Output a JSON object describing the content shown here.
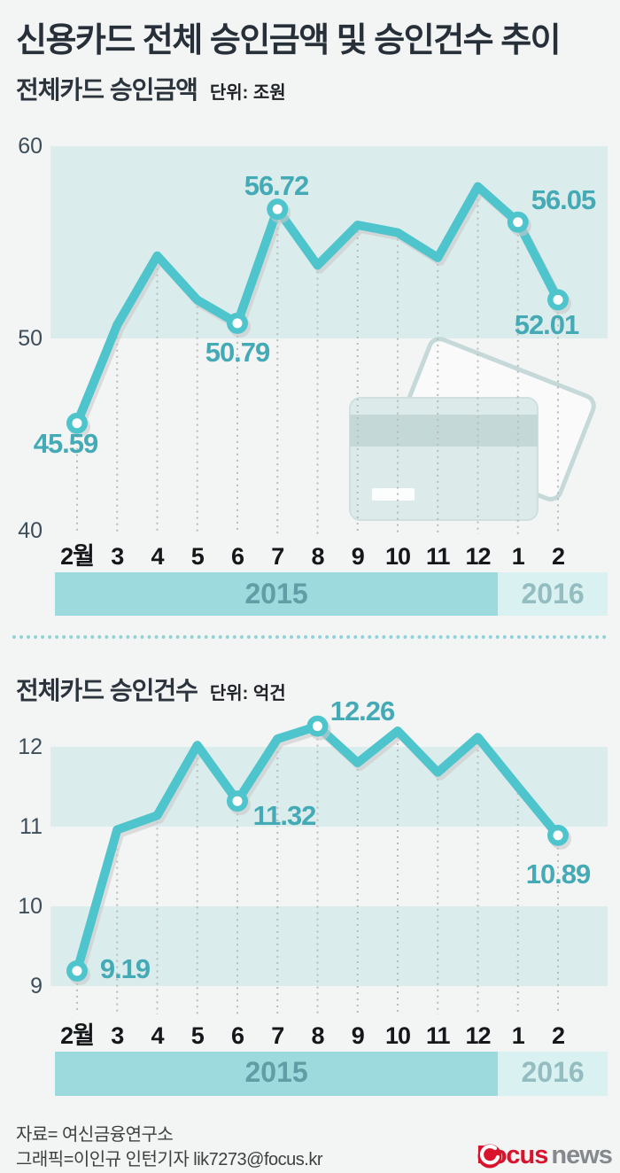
{
  "header": {
    "title": "신용카드 전체 승인금액 및 승인건수 추이"
  },
  "sections": [
    {
      "title": "전체카드 승인금액",
      "unit": "단위: 조원"
    },
    {
      "title": "전체카드 승인건수",
      "unit": "단위: 억건"
    }
  ],
  "chart_data": [
    {
      "type": "line",
      "title": "전체카드 승인금액",
      "unit": "조원",
      "categories": [
        "2월",
        "3",
        "4",
        "5",
        "6",
        "7",
        "8",
        "9",
        "10",
        "11",
        "12",
        "1",
        "2"
      ],
      "x_groups": [
        {
          "label": "2015",
          "count": 11
        },
        {
          "label": "2016",
          "count": 2
        }
      ],
      "values": [
        45.59,
        50.7,
        54.3,
        52.0,
        50.79,
        56.72,
        53.8,
        55.9,
        55.5,
        54.2,
        57.9,
        56.05,
        52.01
      ],
      "labeled_points": [
        {
          "index": 0,
          "label": "45.59"
        },
        {
          "index": 4,
          "label": "50.79"
        },
        {
          "index": 5,
          "label": "56.72"
        },
        {
          "index": 11,
          "label": "56.05"
        },
        {
          "index": 12,
          "label": "52.01"
        }
      ],
      "ylim": [
        40,
        60
      ],
      "yticks": [
        60,
        50,
        40
      ],
      "shaded_bands": [
        [
          50,
          60
        ]
      ],
      "grid": "vertical-dotted",
      "legend": "none"
    },
    {
      "type": "line",
      "title": "전체카드 승인건수",
      "unit": "억건",
      "categories": [
        "2월",
        "3",
        "4",
        "5",
        "6",
        "7",
        "8",
        "9",
        "10",
        "11",
        "12",
        "1",
        "2"
      ],
      "x_groups": [
        {
          "label": "2015",
          "count": 11
        },
        {
          "label": "2016",
          "count": 2
        }
      ],
      "values": [
        9.19,
        10.96,
        11.14,
        12.02,
        11.32,
        12.1,
        12.26,
        11.8,
        12.2,
        11.68,
        12.12,
        11.5,
        10.89
      ],
      "labeled_points": [
        {
          "index": 0,
          "label": "9.19"
        },
        {
          "index": 4,
          "label": "11.32"
        },
        {
          "index": 6,
          "label": "12.26"
        },
        {
          "index": 12,
          "label": "10.89"
        }
      ],
      "ylim": [
        9,
        12.5
      ],
      "yticks": [
        12,
        11,
        10,
        9
      ],
      "shaded_bands": [
        [
          11,
          12
        ],
        [
          9,
          10
        ]
      ],
      "grid": "vertical-dotted",
      "legend": "none"
    }
  ],
  "footer": {
    "source": "자료= 여신금융연구소",
    "credit": "그래픽=이인규 인턴기자 lik7273@focus.kr",
    "logo": {
      "brand": "Focus",
      "suffix": "news"
    }
  },
  "colors": {
    "background": "#f3f4f4",
    "line": "#4ec4cd",
    "line_shadow": "#c9cac8",
    "value_label": "#43aab6",
    "band": "#daeceb",
    "ytick": "#3d4d59",
    "month": "#15181a",
    "grid": "#b9bcbc",
    "bar_2015": "#9cdade",
    "bar_2015_text": "#619da4",
    "bar_2016": "#daf1f1",
    "bar_2016_text": "#93bdc0",
    "card_fill": "#dcebea",
    "card_stripe": "#c4d8d8",
    "card_outline": "#c6d9d9",
    "logo_red": "#d8132b",
    "logo_gray": "#85898d"
  }
}
